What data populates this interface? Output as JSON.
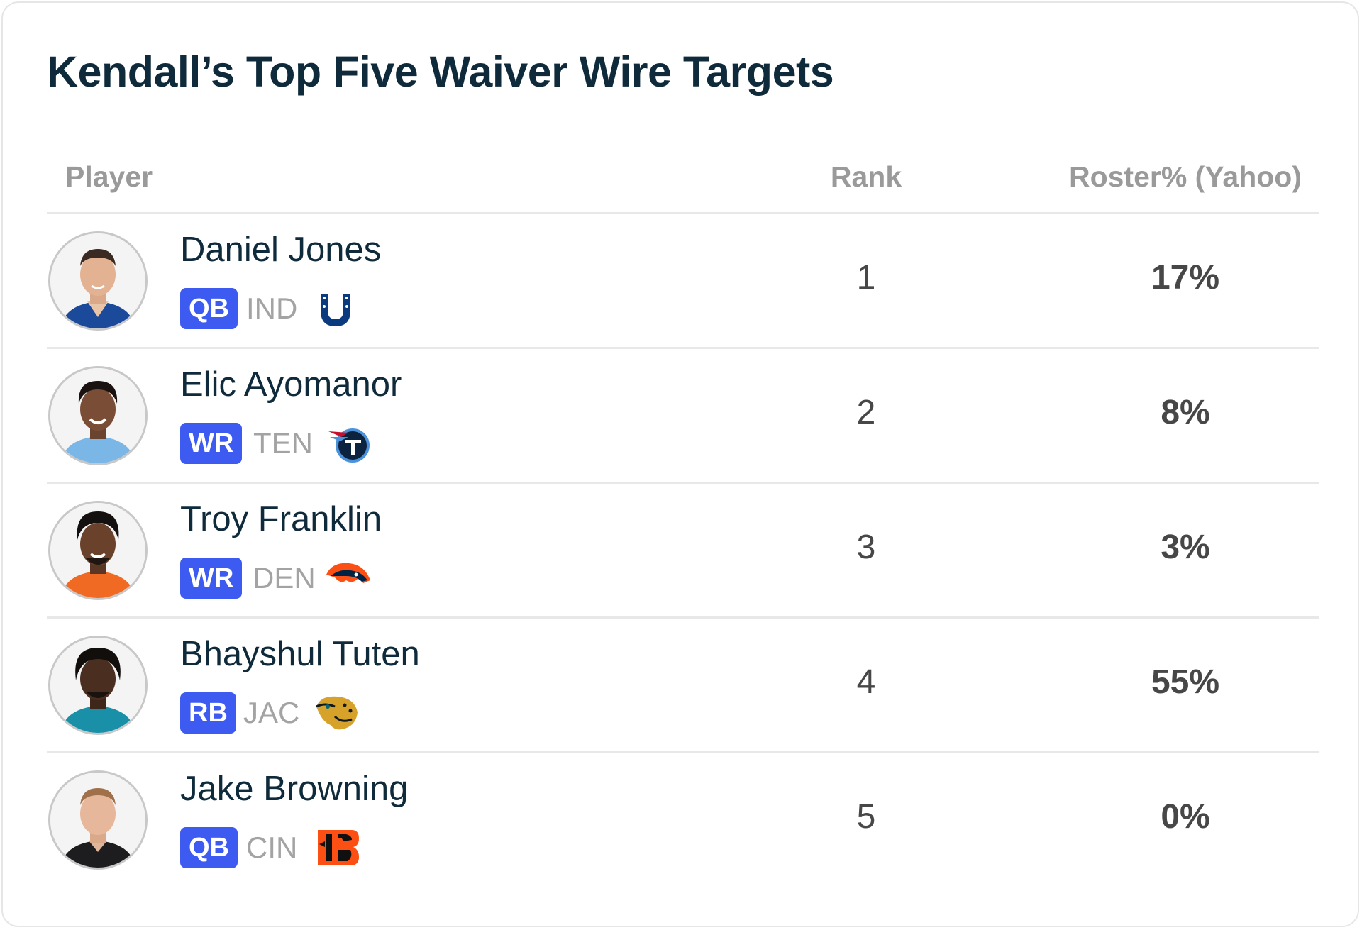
{
  "title": "Kendall’s Top Five Waiver Wire Targets",
  "columns": {
    "player": "Player",
    "rank": "Rank",
    "roster": "Roster% (Yahoo)"
  },
  "colors": {
    "title": "#0e2a3b",
    "badge": "#3d5af1",
    "header_text": "#9a9a9a",
    "value_text": "#474747"
  },
  "players": [
    {
      "name": "Daniel Jones",
      "position": "QB",
      "team": "IND",
      "team_logo_icon": "colts-horseshoe-icon",
      "rank": "1",
      "roster_pct": "17%"
    },
    {
      "name": "Elic Ayomanor",
      "position": "WR",
      "team": "TEN",
      "team_logo_icon": "titans-logo-icon",
      "rank": "2",
      "roster_pct": "8%"
    },
    {
      "name": "Troy Franklin",
      "position": "WR",
      "team": "DEN",
      "team_logo_icon": "broncos-logo-icon",
      "rank": "3",
      "roster_pct": "3%"
    },
    {
      "name": "Bhayshul Tuten",
      "position": "RB",
      "team": "JAC",
      "team_logo_icon": "jaguars-logo-icon",
      "rank": "4",
      "roster_pct": "55%"
    },
    {
      "name": "Jake Browning",
      "position": "QB",
      "team": "CIN",
      "team_logo_icon": "bengals-logo-icon",
      "rank": "5",
      "roster_pct": "0%"
    }
  ]
}
